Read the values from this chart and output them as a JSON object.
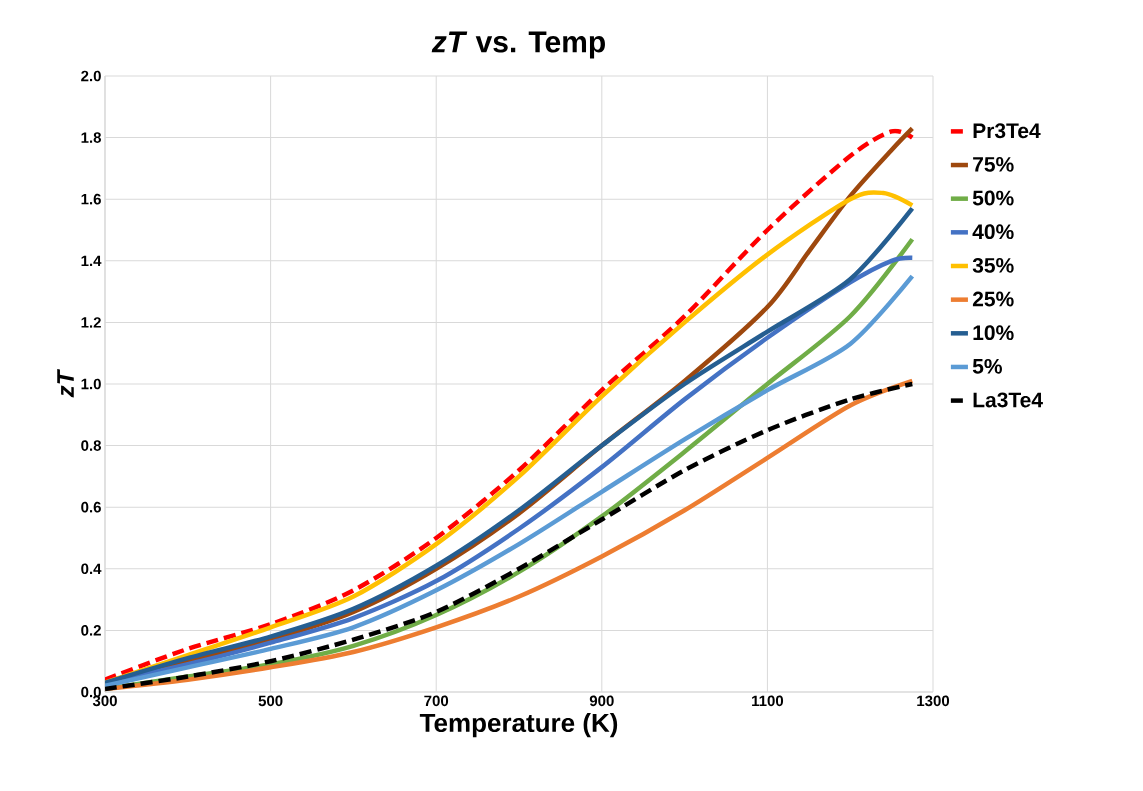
{
  "chart_data": {
    "type": "line",
    "title": "*zT* vs. Temp",
    "xlabel": "Temperature (K)",
    "ylabel": "zT",
    "xlim": [
      300,
      1300
    ],
    "ylim": [
      0,
      2
    ],
    "xticks": [
      300,
      500,
      700,
      900,
      1100,
      1300
    ],
    "yticks": [
      {
        "value": 0,
        "label": "0.0"
      },
      {
        "value": 0.2,
        "label": "0.2"
      },
      {
        "value": 0.4,
        "label": "0.4"
      },
      {
        "value": 0.6,
        "label": "0.6"
      },
      {
        "value": 0.8,
        "label": "0.8"
      },
      {
        "value": 1.0,
        "label": "1.0"
      },
      {
        "value": 1.2,
        "label": "1.2"
      },
      {
        "value": 1.4,
        "label": "1.4"
      },
      {
        "value": 1.6,
        "label": "1.6"
      },
      {
        "value": 1.8,
        "label": "1.8"
      },
      {
        "value": 2.0,
        "label": "2.0"
      }
    ],
    "grid": true,
    "legend": "right",
    "marker": "none",
    "series": [
      {
        "name": "Pr3Te4",
        "color": "#ff0000",
        "line_style": "dashed",
        "x": [
          300,
          400,
          500,
          600,
          700,
          800,
          900,
          1000,
          1100,
          1200,
          1250,
          1275
        ],
        "values": [
          0.04,
          0.14,
          0.22,
          0.33,
          0.5,
          0.72,
          0.98,
          1.22,
          1.5,
          1.74,
          1.82,
          1.8
        ]
      },
      {
        "name": "75%",
        "color": "#9e480e",
        "line_style": "solid",
        "x": [
          300,
          400,
          500,
          600,
          700,
          800,
          900,
          1000,
          1100,
          1150,
          1200,
          1250,
          1275
        ],
        "values": [
          0.03,
          0.1,
          0.17,
          0.26,
          0.4,
          0.58,
          0.8,
          1.01,
          1.25,
          1.43,
          1.61,
          1.76,
          1.83
        ]
      },
      {
        "name": "50%",
        "color": "#70ad47",
        "line_style": "solid",
        "x": [
          300,
          400,
          500,
          600,
          700,
          800,
          900,
          1000,
          1100,
          1200,
          1275
        ],
        "values": [
          0.01,
          0.05,
          0.09,
          0.15,
          0.25,
          0.39,
          0.57,
          0.78,
          1.0,
          1.22,
          1.47
        ]
      },
      {
        "name": "40%",
        "color": "#4472c4",
        "line_style": "solid",
        "x": [
          300,
          400,
          500,
          600,
          700,
          800,
          900,
          1000,
          1100,
          1200,
          1250,
          1275
        ],
        "values": [
          0.03,
          0.09,
          0.16,
          0.24,
          0.36,
          0.53,
          0.73,
          0.95,
          1.15,
          1.33,
          1.4,
          1.41
        ]
      },
      {
        "name": "35%",
        "color": "#ffc000",
        "line_style": "solid",
        "x": [
          300,
          400,
          500,
          600,
          700,
          800,
          900,
          1000,
          1100,
          1200,
          1240,
          1275
        ],
        "values": [
          0.03,
          0.12,
          0.21,
          0.31,
          0.48,
          0.7,
          0.96,
          1.2,
          1.42,
          1.6,
          1.62,
          1.58
        ]
      },
      {
        "name": "25%",
        "color": "#ed7d31",
        "line_style": "solid",
        "x": [
          300,
          400,
          500,
          600,
          700,
          800,
          900,
          1000,
          1100,
          1200,
          1275
        ],
        "values": [
          0.01,
          0.04,
          0.08,
          0.13,
          0.21,
          0.31,
          0.44,
          0.59,
          0.76,
          0.93,
          1.01
        ]
      },
      {
        "name": "10%",
        "color": "#255e91",
        "line_style": "solid",
        "x": [
          300,
          400,
          500,
          600,
          700,
          800,
          900,
          1000,
          1100,
          1200,
          1275
        ],
        "values": [
          0.03,
          0.11,
          0.18,
          0.27,
          0.41,
          0.59,
          0.8,
          1.0,
          1.17,
          1.34,
          1.57
        ]
      },
      {
        "name": "5%",
        "color": "#5b9bd5",
        "line_style": "solid",
        "x": [
          300,
          400,
          500,
          600,
          700,
          800,
          900,
          1000,
          1100,
          1200,
          1275
        ],
        "values": [
          0.02,
          0.08,
          0.14,
          0.21,
          0.33,
          0.48,
          0.65,
          0.82,
          0.98,
          1.13,
          1.35
        ]
      },
      {
        "name": "La3Te4",
        "color": "#000000",
        "line_style": "dashed",
        "x": [
          300,
          400,
          500,
          600,
          700,
          800,
          900,
          1000,
          1100,
          1200,
          1275
        ],
        "values": [
          0.01,
          0.05,
          0.1,
          0.17,
          0.26,
          0.4,
          0.56,
          0.72,
          0.85,
          0.95,
          1.0
        ]
      }
    ]
  }
}
